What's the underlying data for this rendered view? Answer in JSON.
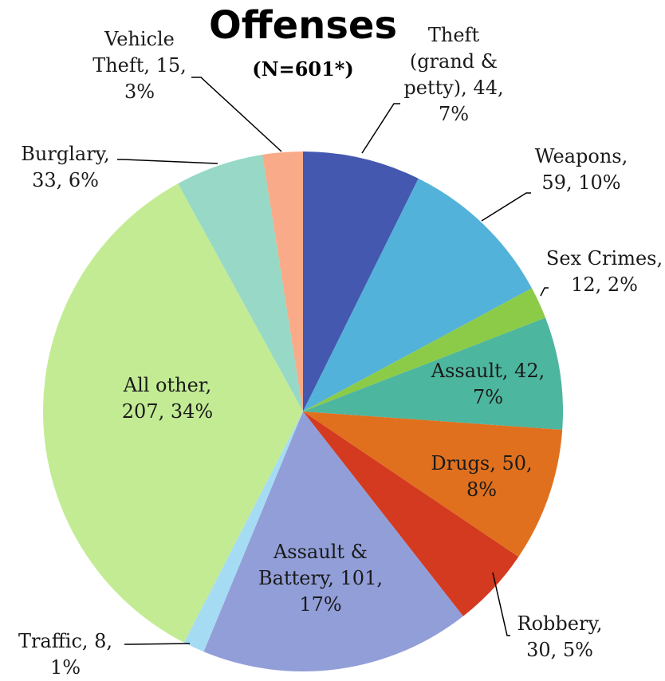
{
  "chart_data": {
    "type": "pie",
    "title": "Offenses",
    "subtitle": "(N=601*)",
    "slices": [
      {
        "name": "Theft (grand & petty)",
        "value": 44,
        "percent": "7%",
        "color": "#4458B0",
        "label_lines": [
          "Theft",
          "(grand &",
          "petty), 44,",
          "7%"
        ]
      },
      {
        "name": "Weapons",
        "value": 59,
        "percent": "10%",
        "color": "#52B2D9",
        "label_lines": [
          "Weapons,",
          "59, 10%"
        ]
      },
      {
        "name": "Sex Crimes",
        "value": 12,
        "percent": "2%",
        "color": "#8CCB47",
        "label_lines": [
          "Sex Crimes,",
          "12, 2%"
        ]
      },
      {
        "name": "Assault",
        "value": 42,
        "percent": "7%",
        "color": "#4DB69E",
        "label_lines": [
          "Assault, 42,",
          "7%"
        ]
      },
      {
        "name": "Drugs",
        "value": 50,
        "percent": "8%",
        "color": "#E0701E",
        "label_lines": [
          "Drugs, 50,",
          "8%"
        ]
      },
      {
        "name": "Robbery",
        "value": 30,
        "percent": "5%",
        "color": "#D43A20",
        "label_lines": [
          "Robbery,",
          "30, 5%"
        ]
      },
      {
        "name": "Assault & Battery",
        "value": 101,
        "percent": "17%",
        "color": "#929ED8",
        "label_lines": [
          "Assault &",
          "Battery, 101,",
          "17%"
        ]
      },
      {
        "name": "Traffic",
        "value": 8,
        "percent": "1%",
        "color": "#A6DCF3",
        "label_lines": [
          "Traffic, 8,",
          "1%"
        ]
      },
      {
        "name": "All other",
        "value": 207,
        "percent": "34%",
        "color": "#C3EB94",
        "label_lines": [
          "All other,",
          "207, 34%"
        ]
      },
      {
        "name": "Burglary",
        "value": 33,
        "percent": "6%",
        "color": "#97D9C6",
        "label_lines": [
          "Burglary,",
          "33, 6%"
        ]
      },
      {
        "name": "Vehicle Theft",
        "value": 15,
        "percent": "3%",
        "color": "#F9AA88",
        "label_lines": [
          "Vehicle",
          "Theft, 15,",
          "3%"
        ]
      }
    ]
  }
}
